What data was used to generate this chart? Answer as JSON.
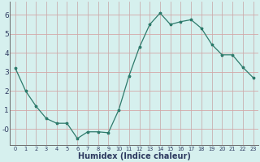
{
  "x": [
    0,
    1,
    2,
    3,
    4,
    5,
    6,
    7,
    8,
    9,
    10,
    11,
    12,
    13,
    14,
    15,
    16,
    17,
    18,
    19,
    20,
    21,
    22,
    23
  ],
  "y": [
    3.2,
    2.0,
    1.2,
    0.55,
    0.3,
    0.3,
    -0.5,
    -0.15,
    -0.15,
    -0.2,
    1.0,
    2.8,
    4.3,
    5.5,
    6.1,
    5.5,
    5.65,
    5.75,
    5.3,
    4.45,
    3.9,
    3.9,
    3.25,
    2.7
  ],
  "line_color": "#2d7a6b",
  "marker_size": 2.5,
  "bg_color": "#d6f0ee",
  "grid_color_h": "#d4a8a8",
  "grid_color_v": "#c8b0b0",
  "xlabel": "Humidex (Indice chaleur)",
  "xlabel_fontsize": 7,
  "xlabel_color": "#2e3a60",
  "tick_label_color": "#2e3a60",
  "yticks": [
    0,
    1,
    2,
    3,
    4,
    5,
    6
  ],
  "ylim": [
    -0.85,
    6.7
  ],
  "xlim": [
    -0.5,
    23.5
  ],
  "xtick_labels": [
    "0",
    "1",
    "2",
    "3",
    "4",
    "5",
    "6",
    "7",
    "8",
    "9",
    "10",
    "11",
    "12",
    "13",
    "14",
    "15",
    "16",
    "17",
    "18",
    "19",
    "20",
    "21",
    "22",
    "23"
  ]
}
